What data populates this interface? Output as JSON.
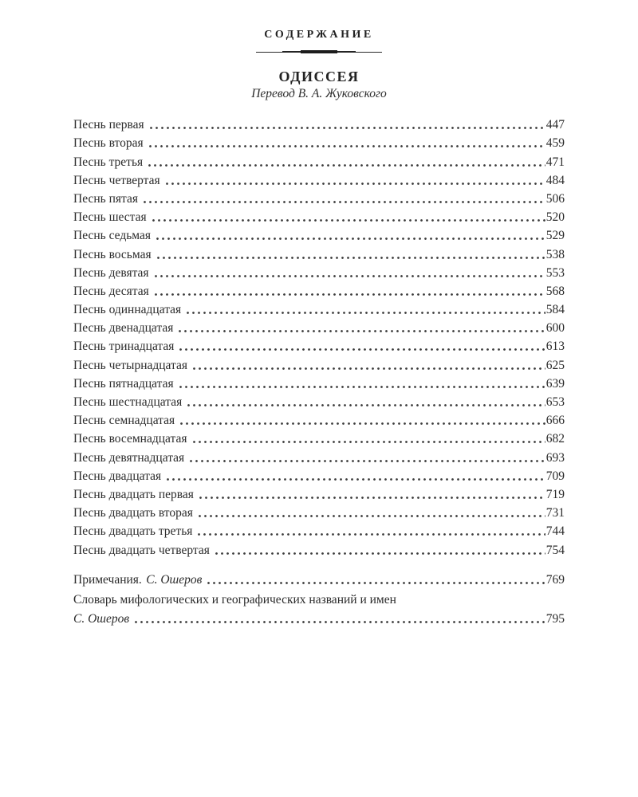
{
  "header": {
    "title": "СОДЕРЖАНИЕ"
  },
  "section": {
    "title": "ОДИССЕЯ",
    "subtitle": "Перевод В. А. Жуковского"
  },
  "toc": {
    "entries": [
      {
        "title": "Песнь первая",
        "page": "447"
      },
      {
        "title": "Песнь вторая",
        "page": "459"
      },
      {
        "title": "Песнь третья",
        "page": "471"
      },
      {
        "title": "Песнь четвертая",
        "page": "484"
      },
      {
        "title": "Песнь пятая",
        "page": "506"
      },
      {
        "title": "Песнь шестая",
        "page": "520"
      },
      {
        "title": "Песнь седьмая",
        "page": "529"
      },
      {
        "title": "Песнь восьмая",
        "page": "538"
      },
      {
        "title": "Песнь девятая",
        "page": "553"
      },
      {
        "title": "Песнь десятая",
        "page": "568"
      },
      {
        "title": "Песнь одиннадцатая",
        "page": "584"
      },
      {
        "title": "Песнь двенадцатая",
        "page": "600"
      },
      {
        "title": "Песнь тринадцатая",
        "page": "613"
      },
      {
        "title": "Песнь четырнадцатая",
        "page": "625"
      },
      {
        "title": "Песнь пятнадцатая",
        "page": "639"
      },
      {
        "title": "Песнь шестнадцатая",
        "page": "653"
      },
      {
        "title": "Песнь семнадцатая",
        "page": "666"
      },
      {
        "title": "Песнь восемнадцатая",
        "page": "682"
      },
      {
        "title": "Песнь девятнадцатая",
        "page": "693"
      },
      {
        "title": "Песнь двадцатая",
        "page": "709"
      },
      {
        "title": "Песнь двадцать первая",
        "page": "719"
      },
      {
        "title": "Песнь двадцать вторая",
        "page": "731"
      },
      {
        "title": "Песнь двадцать третья",
        "page": "744"
      },
      {
        "title": "Песнь двадцать четвертая",
        "page": "754"
      }
    ],
    "notes": {
      "label": "Примечания.",
      "author": "С. Ошеров",
      "page": "769"
    },
    "glossary": {
      "label": "Словарь мифологических и географических названий и имен",
      "author": "С. Ошеров",
      "page": "795"
    }
  },
  "colors": {
    "text": "#2b2b2b",
    "leader_dots": "#3b3b3b"
  }
}
